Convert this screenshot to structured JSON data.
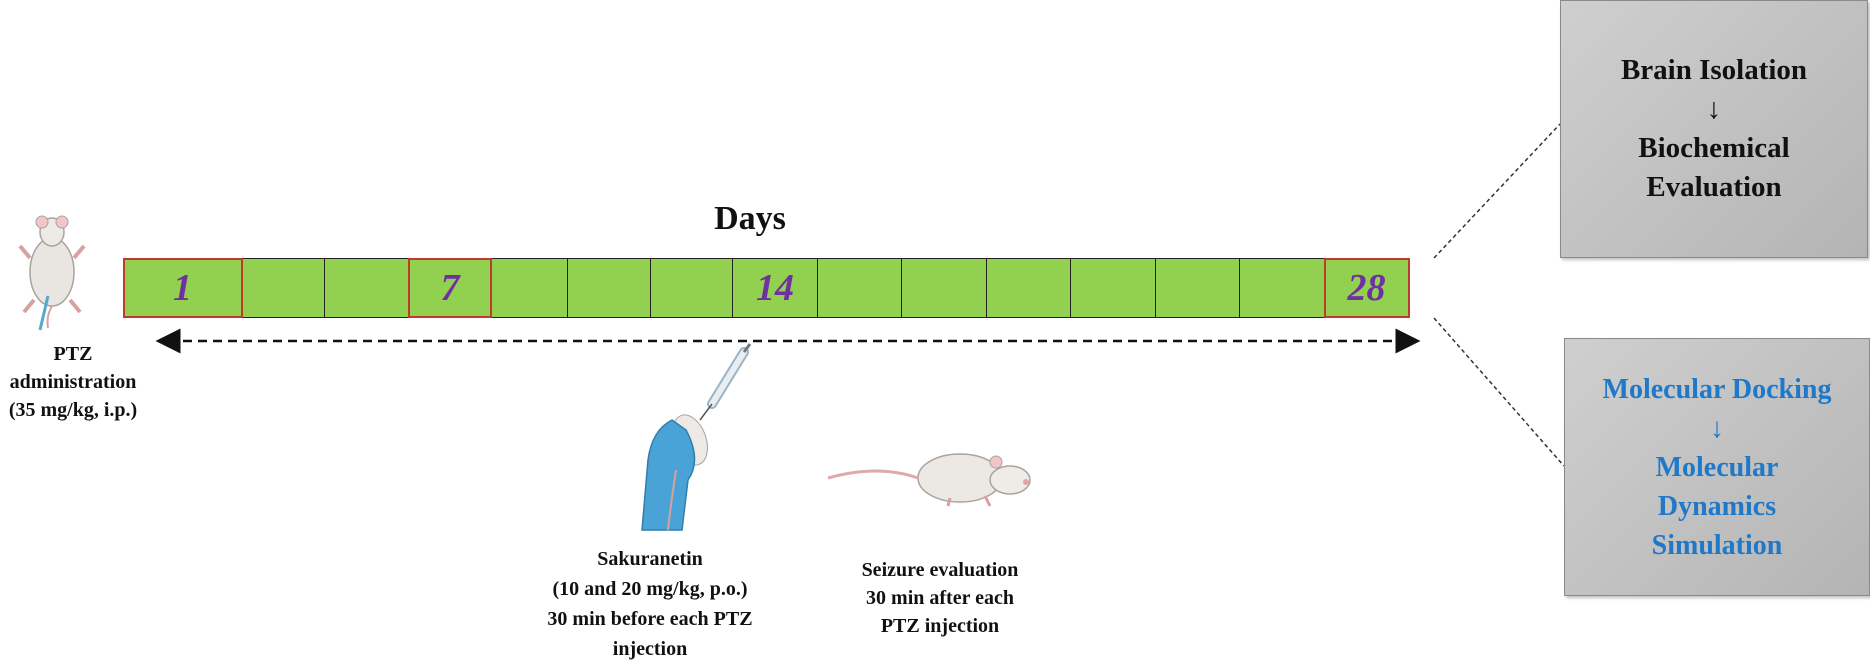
{
  "timeline": {
    "title": "Days",
    "cells": [
      {
        "label": "1",
        "marked": true
      },
      {
        "label": "",
        "marked": false
      },
      {
        "label": "",
        "marked": false
      },
      {
        "label": "7",
        "marked": true
      },
      {
        "label": "",
        "marked": false
      },
      {
        "label": "",
        "marked": false
      },
      {
        "label": "",
        "marked": false
      },
      {
        "label": "14",
        "marked": false
      },
      {
        "label": "",
        "marked": false
      },
      {
        "label": "",
        "marked": false
      },
      {
        "label": "",
        "marked": false
      },
      {
        "label": "",
        "marked": false
      },
      {
        "label": "",
        "marked": false
      },
      {
        "label": "",
        "marked": false
      },
      {
        "label": "28",
        "marked": true
      }
    ],
    "cell_color": "#92d050",
    "label_color": "#7030a0",
    "marker_border_color": "#c0392b"
  },
  "left_caption": {
    "lines": [
      "PTZ",
      "administration",
      "(35 mg/kg, i.p.)"
    ]
  },
  "treatment_caption": {
    "lines": [
      "Sakuranetin",
      "(10 and 20 mg/kg, p.o.)",
      "30 min before each PTZ",
      "injection"
    ]
  },
  "seizure_caption": {
    "lines": [
      "Seizure evaluation",
      "30 min after each",
      "PTZ injection"
    ]
  },
  "outcome_box_top": {
    "line1": "Brain Isolation",
    "arrow": "↓",
    "line2": "Biochemical",
    "line3": "Evaluation"
  },
  "outcome_box_bottom": {
    "line1": "Molecular Docking",
    "arrow": "↓",
    "line2": "Molecular",
    "line3": "Dynamics",
    "line4": "Simulation",
    "text_color": "#1f78c8"
  },
  "icons": [
    "mouse-injection-icon",
    "syringe-hand-icon",
    "rat-icon"
  ]
}
